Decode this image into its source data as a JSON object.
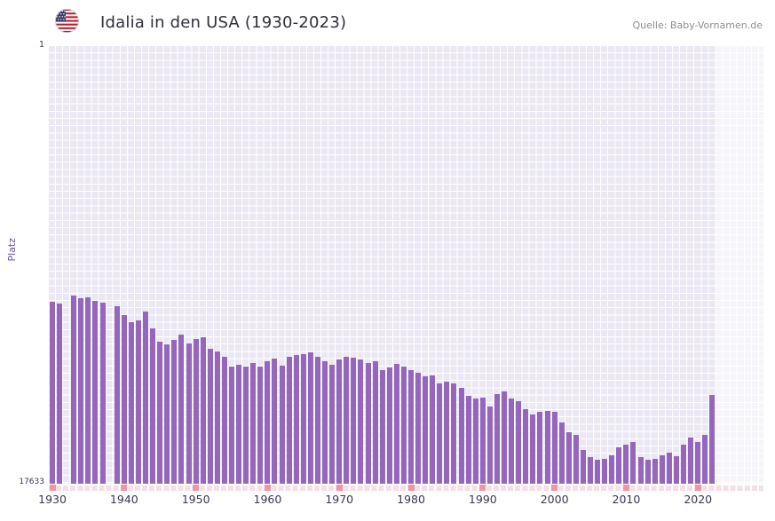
{
  "header": {
    "title": "Idalia in den USA (1930-2023)",
    "source": "Quelle: Baby-Vornamen.de"
  },
  "chart_data": {
    "type": "bar",
    "title": "Idalia in den USA (1930-2023)",
    "xlabel": "",
    "ylabel": "Platz",
    "y_axis": {
      "top_tick": "1",
      "bottom_tick": "17633",
      "best_rank": 1,
      "worst_rank": 17633,
      "inverted": true
    },
    "x_tick_labels": [
      "1930",
      "1940",
      "1950",
      "1960",
      "1970",
      "1980",
      "1990",
      "2000",
      "2010",
      "2020"
    ],
    "highlight_from_year": 2023,
    "years": [
      1930,
      1931,
      1932,
      1933,
      1934,
      1935,
      1936,
      1937,
      1938,
      1939,
      1940,
      1941,
      1942,
      1943,
      1944,
      1945,
      1946,
      1947,
      1948,
      1949,
      1950,
      1951,
      1952,
      1953,
      1954,
      1955,
      1956,
      1957,
      1958,
      1959,
      1960,
      1961,
      1962,
      1963,
      1964,
      1965,
      1966,
      1967,
      1968,
      1969,
      1970,
      1971,
      1972,
      1973,
      1974,
      1975,
      1976,
      1977,
      1978,
      1979,
      1980,
      1981,
      1982,
      1983,
      1984,
      1985,
      1986,
      1987,
      1988,
      1989,
      1990,
      1991,
      1992,
      1993,
      1994,
      1995,
      1996,
      1997,
      1998,
      1999,
      2000,
      2001,
      2002,
      2003,
      2004,
      2005,
      2006,
      2007,
      2008,
      2009,
      2010,
      2011,
      2012,
      2013,
      2014,
      2015,
      2016,
      2017,
      2018,
      2019,
      2020,
      2021,
      2022,
      2023
    ],
    "ranks": [
      10300,
      10370,
      null,
      10050,
      10160,
      10120,
      10260,
      10340,
      null,
      10480,
      10840,
      11120,
      11050,
      10690,
      11370,
      11910,
      12020,
      11840,
      11620,
      11980,
      11800,
      11730,
      12200,
      12300,
      12520,
      12910,
      12840,
      12910,
      12770,
      12910,
      12700,
      12590,
      12880,
      12520,
      12450,
      12410,
      12340,
      12520,
      12700,
      12840,
      12630,
      12520,
      12550,
      12630,
      12770,
      12700,
      13050,
      12950,
      12800,
      12910,
      13050,
      13160,
      13300,
      13270,
      13590,
      13520,
      13590,
      13770,
      14090,
      14200,
      14160,
      14520,
      14020,
      13910,
      14200,
      14310,
      14630,
      14840,
      14740,
      14700,
      14740,
      15170,
      15560,
      15670,
      16270,
      16560,
      16670,
      16630,
      16490,
      16170,
      16060,
      15950,
      16560,
      16670,
      16630,
      16490,
      16380,
      16520,
      16060,
      15770,
      15950,
      15670,
      14060,
      null
    ],
    "grid": true,
    "legend": "none",
    "colors": {
      "bar": "#9467bd",
      "plot_background": "#ebe8f4",
      "grid": "#ffffff",
      "recent_band": "#f5f3fa",
      "decade_tick": "#ee96a4",
      "axis_strip": "#f6dee6",
      "title": "#2f2f3a",
      "source": "#8e8e8e",
      "axis_text": "#3b3552",
      "ylabel_text": "#6a4fa0"
    }
  }
}
